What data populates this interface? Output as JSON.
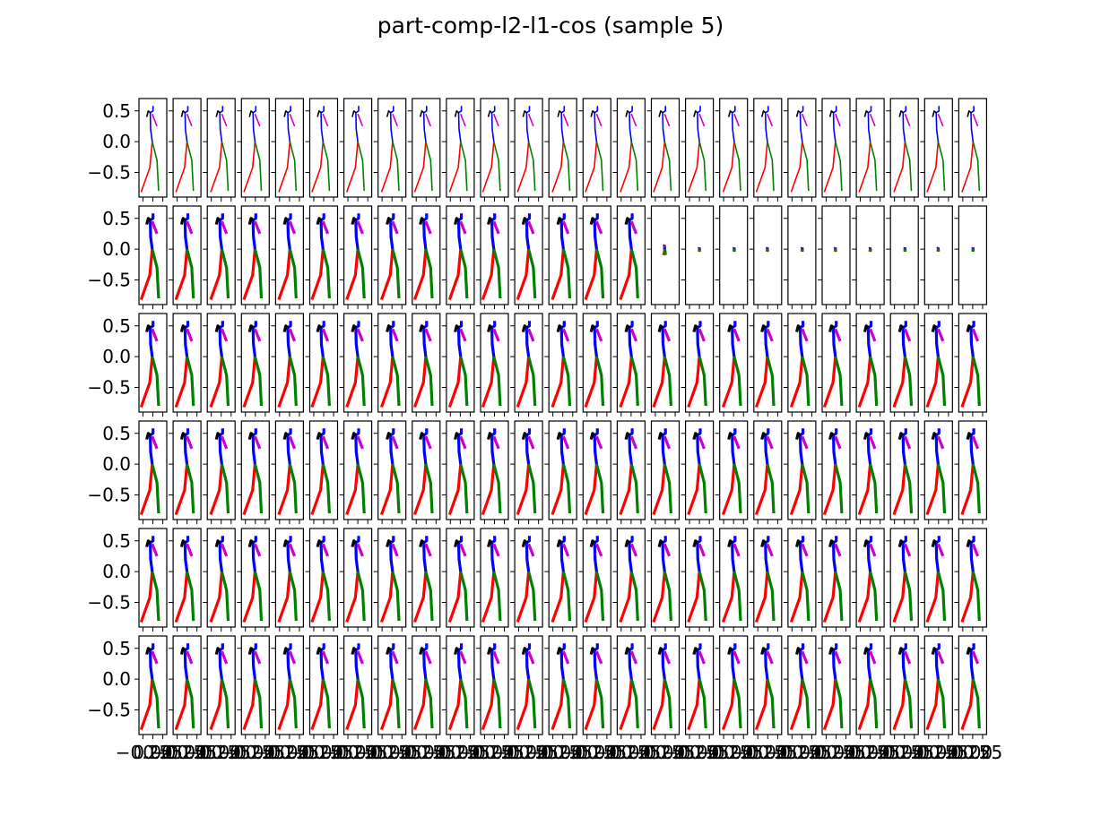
{
  "chart_data": {
    "type": "line",
    "title": "part-comp-l2-l1-cos (sample 5)",
    "layout": {
      "rows": 6,
      "cols": 25
    },
    "ylim": [
      -0.9,
      0.7
    ],
    "yticks": [
      0.5,
      0.0,
      -0.5
    ],
    "ytick_labels": [
      "0.5",
      "0.0",
      "−0.5"
    ],
    "xtick_labels_bottom_row": [
      "−0.25",
      "0.00",
      "0.25"
    ],
    "grid": false,
    "legend": "none",
    "series_colors": {
      "torso": "#0000ff",
      "arm_left": "#000000",
      "arm_right": "#cc00cc",
      "leg_left": "#ff0000",
      "leg_right": "#008000"
    },
    "pose_points": {
      "pelvis": [
        0.0,
        0.0
      ],
      "neck": [
        -0.05,
        0.47
      ],
      "head": [
        0.02,
        0.58
      ],
      "l_knee": [
        -0.06,
        -0.42
      ],
      "l_foot": [
        -0.28,
        -0.82
      ],
      "r_knee": [
        0.12,
        -0.3
      ],
      "r_foot": [
        0.16,
        -0.8
      ],
      "l_hand": [
        -0.14,
        0.4
      ],
      "r_hand": [
        0.12,
        0.25
      ]
    },
    "collapsed_frames": {
      "row": 2,
      "from_col": 16,
      "to_col": 25
    }
  }
}
